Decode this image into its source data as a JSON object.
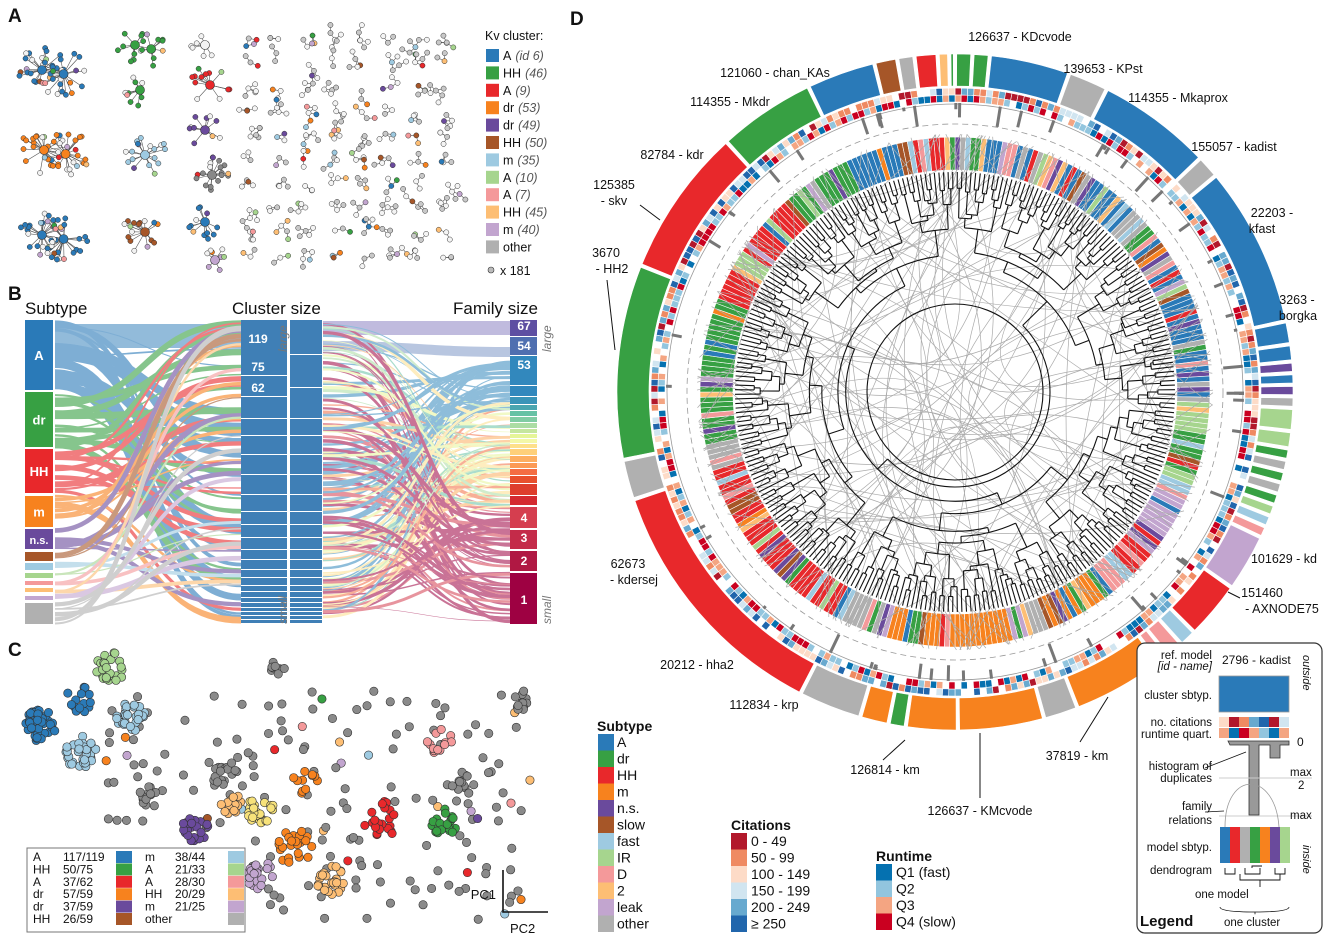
{
  "colors": {
    "A": "#2a7ab8",
    "dr": "#37a043",
    "HH": "#e8282b",
    "m": "#f7821e",
    "n.s.": "#6a4a9c",
    "slow": "#a65628",
    "fast": "#9ecae1",
    "IR": "#a6d58e",
    "D": "#f4999a",
    "2": "#fdbe74",
    "leak": "#c2a5cf",
    "other": "#b0b0b0"
  },
  "panel_labels": {
    "a": "A",
    "b": "B",
    "c": "C",
    "d": "D"
  },
  "panel_a": {
    "legend_title": "Kv cluster:",
    "legend": [
      {
        "key": "A",
        "label": "A",
        "id": "(id 6)"
      },
      {
        "key": "dr",
        "label": "HH",
        "id": "(46)"
      },
      {
        "key": "HH",
        "label": "A",
        "id": "(9)"
      },
      {
        "key": "m",
        "label": "dr",
        "id": "(53)"
      },
      {
        "key": "n.s.",
        "label": "dr",
        "id": "(49)"
      },
      {
        "key": "slow",
        "label": "HH",
        "id": "(50)"
      },
      {
        "key": "fast",
        "label": "m",
        "id": "(35)"
      },
      {
        "key": "IR",
        "label": "A",
        "id": "(10)"
      },
      {
        "key": "D",
        "label": "A",
        "id": "(7)"
      },
      {
        "key": "2",
        "label": "HH",
        "id": "(45)"
      },
      {
        "key": "leak",
        "label": "m",
        "id": "(40)"
      },
      {
        "key": "other",
        "label": "other",
        "id": ""
      }
    ],
    "singletons": "x 181"
  },
  "panel_b": {
    "title_subtype": "Subtype",
    "title_cluster": "Cluster size",
    "title_family": "Family size",
    "subtypes": [
      "A",
      "dr",
      "HH",
      "m",
      "n.s."
    ],
    "cluster_size_labels": [
      "119",
      "75",
      "62"
    ],
    "family_size_labels_top": [
      "67",
      "54",
      "53"
    ],
    "family_size_labels_bottom": [
      "4",
      "3",
      "2",
      "1"
    ],
    "large": "large",
    "small": "small"
  },
  "panel_c": {
    "axis_x": "PC1",
    "axis_y": "PC2",
    "legend": [
      {
        "label": "A",
        "value": "117/119",
        "key": "A"
      },
      {
        "label": "HH",
        "value": "50/75",
        "key": "dr"
      },
      {
        "label": "A",
        "value": "37/62",
        "key": "HH"
      },
      {
        "label": "dr",
        "value": "57/59",
        "key": "m"
      },
      {
        "label": "dr",
        "value": "37/59",
        "key": "n.s."
      },
      {
        "label": "HH",
        "value": "26/59",
        "key": "slow"
      },
      {
        "label": "m",
        "value": "38/44",
        "key": "fast"
      },
      {
        "label": "A",
        "value": "21/33",
        "key": "IR"
      },
      {
        "label": "A",
        "value": "28/30",
        "key": "D"
      },
      {
        "label": "HH",
        "value": "20/29",
        "key": "2"
      },
      {
        "label": "m",
        "value": "21/25",
        "key": "leak"
      },
      {
        "label": "other",
        "value": "",
        "key": "other"
      }
    ]
  },
  "panel_d": {
    "ref_labels": [
      "126637 - KDcvode",
      "139653 - KPst",
      "114355 - Mkaprox",
      "155057 - kadist",
      "22203 - kfast",
      "3263 - borgka",
      "101629 - kd",
      "151460 - AXNODE75",
      "37819 - km",
      "126637 - KMcvode",
      "126814 - km",
      "112834 - krp",
      "20212 - hha2",
      "62673 - kdersej",
      "3670 - HH2",
      "125385 - skv",
      "82784 - kdr",
      "114355 - Mkdr",
      "121060 - chan_KAs"
    ],
    "clusters": [
      [
        "dr",
        3
      ],
      [
        "dr",
        3
      ],
      [
        "A",
        14
      ],
      [
        "other",
        7
      ],
      [
        "A",
        20
      ],
      [
        "other",
        4
      ],
      [
        "A",
        28
      ],
      [
        "A",
        4
      ],
      [
        "A",
        3
      ],
      [
        "n.s.",
        2
      ],
      [
        "A",
        2
      ],
      [
        "n.s.",
        2
      ],
      [
        "other",
        2
      ],
      [
        "IR",
        4
      ],
      [
        "IR",
        3
      ],
      [
        "dr",
        2
      ],
      [
        "other",
        2
      ],
      [
        "dr",
        2
      ],
      [
        "other",
        2
      ],
      [
        "dr",
        2
      ],
      [
        "IR",
        2
      ],
      [
        "fast",
        2
      ],
      [
        "D",
        2
      ],
      [
        "leak",
        10
      ],
      [
        "HH",
        10
      ],
      [
        "fast",
        3
      ],
      [
        "D",
        3
      ],
      [
        "D",
        2
      ],
      [
        "m",
        16
      ],
      [
        "other",
        6
      ],
      [
        "m",
        15
      ],
      [
        "m",
        9
      ],
      [
        "dr",
        3
      ],
      [
        "m",
        5
      ],
      [
        "other",
        11
      ],
      [
        "HH",
        45
      ],
      [
        "other",
        7
      ],
      [
        "dr",
        34
      ],
      [
        "HH",
        26
      ],
      [
        "dr",
        17
      ],
      [
        "A",
        12
      ],
      [
        "slow",
        4
      ],
      [
        "other",
        3
      ],
      [
        "HH",
        4
      ],
      [
        "2",
        2
      ],
      [
        "dr",
        1
      ]
    ],
    "legend_subtype_title": "Subtype",
    "legend_subtype": [
      "A",
      "dr",
      "HH",
      "m",
      "n.s.",
      "slow",
      "fast",
      "IR",
      "D",
      "2",
      "leak",
      "other"
    ],
    "legend_citations_title": "Citations",
    "legend_citations": [
      {
        "label": "0 - 49",
        "color": "#b2182b"
      },
      {
        "label": "50 - 99",
        "color": "#ef8a62"
      },
      {
        "label": "100 - 149",
        "color": "#fddbc7"
      },
      {
        "label": "150 - 199",
        "color": "#d1e5f0"
      },
      {
        "label": "200 - 249",
        "color": "#67a9cf"
      },
      {
        "label": "≥ 250",
        "color": "#2166ac"
      }
    ],
    "legend_runtime_title": "Runtime",
    "legend_runtime": [
      {
        "label": "Q1 (fast)",
        "color": "#0571b0"
      },
      {
        "label": "Q2",
        "color": "#92c5de"
      },
      {
        "label": "Q3",
        "color": "#f4a582"
      },
      {
        "label": "Q4 (slow)",
        "color": "#ca0020"
      }
    ],
    "legend_box": {
      "title": "Legend",
      "ref_model": "ref. model",
      "id_name": "[id - name]",
      "example": "2796 - kadist",
      "outside": "outside",
      "inside": "inside",
      "cluster_sbtyp": "cluster sbtyp.",
      "no_citations": "no. citations",
      "runtime_quart": "runtime quart.",
      "hist_1": "histogram of",
      "hist_2": "duplicates",
      "family_1": "family",
      "family_2": "relations",
      "model_sbtyp": "model sbtyp.",
      "dendrogram": "dendrogram",
      "one_model": "one model",
      "one_cluster": "one cluster",
      "zero": "0",
      "max": "max",
      "max_half_num": "max",
      "max_half_den": "2"
    }
  }
}
